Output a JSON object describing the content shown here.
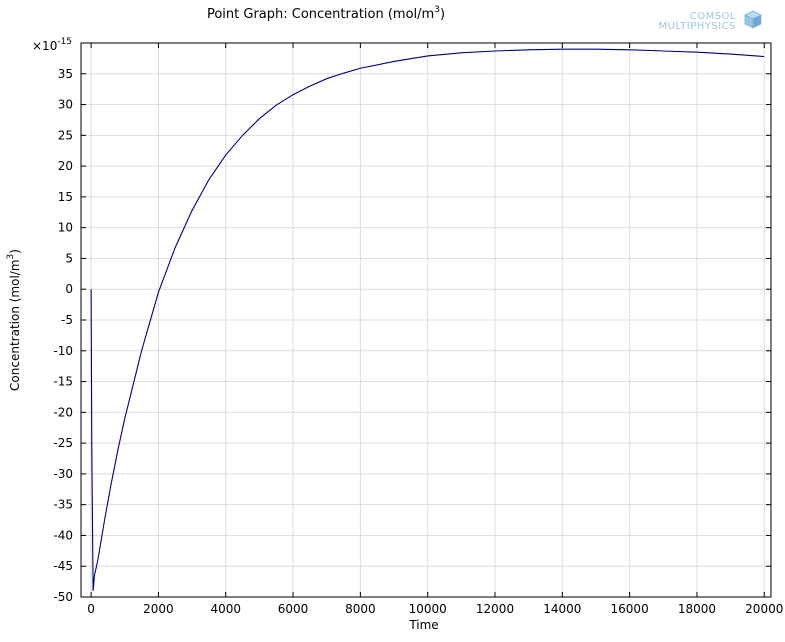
{
  "logo": {
    "line1": "COMSOL",
    "line2": "MULTIPHYSICS"
  },
  "chart_data": {
    "type": "line",
    "title_prefix": "Point Graph: Concentration (mol/m",
    "title_sup": "3",
    "title_suffix": ")",
    "xlabel": "Time",
    "ylabel_prefix": "Concentration (mol/m",
    "ylabel_sup": "3",
    "ylabel_suffix": ")",
    "multiplier_base": "×10",
    "multiplier_exp": "-15",
    "xlim": [
      -300,
      20200
    ],
    "ylim": [
      -50,
      40
    ],
    "x_ticks": [
      0,
      2000,
      4000,
      6000,
      8000,
      10000,
      12000,
      14000,
      16000,
      18000,
      20000
    ],
    "y_ticks": [
      -50,
      -45,
      -40,
      -35,
      -30,
      -25,
      -20,
      -15,
      -10,
      -5,
      0,
      5,
      10,
      15,
      20,
      25,
      30,
      35
    ],
    "grid": true,
    "line_color": "#000080",
    "series": [
      {
        "x": [
          0,
          10,
          20,
          40,
          60,
          100,
          200,
          400,
          600,
          800,
          1000,
          1500,
          2000,
          2500,
          3000,
          3500,
          4000,
          4500,
          5000,
          5500,
          6000,
          6500,
          7000,
          7500,
          8000,
          9000,
          10000,
          11000,
          12000,
          13000,
          14000,
          15000,
          16000,
          17000,
          18000,
          19000,
          20000
        ],
        "y": [
          0,
          -12,
          -25,
          -37,
          -49,
          -46.5,
          -44,
          -37.5,
          -31.5,
          -26,
          -21,
          -10,
          -0.5,
          6.8,
          12.8,
          17.8,
          21.8,
          25,
          27.7,
          29.9,
          31.6,
          33,
          34.2,
          35.1,
          35.9,
          37,
          37.9,
          38.4,
          38.7,
          38.9,
          39,
          39,
          38.9,
          38.7,
          38.5,
          38.2,
          37.8
        ]
      }
    ]
  }
}
